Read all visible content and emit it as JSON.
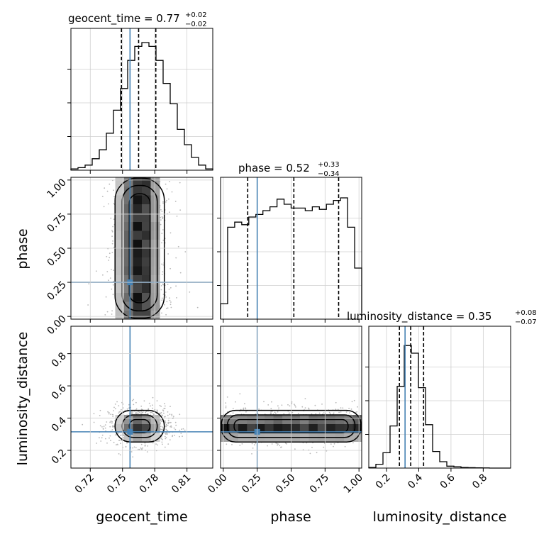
{
  "chart_data": {
    "type": "corner",
    "parameters": [
      "geocent_time",
      "phase",
      "luminosity_distance"
    ],
    "truths": {
      "geocent_time": 0.757,
      "phase": 0.25,
      "luminosity_distance": 0.315
    },
    "titles": {
      "geocent_time": {
        "label": "geocent_time = 0.77",
        "plus": "+0.02",
        "minus": "−0.02"
      },
      "phase": {
        "label": "phase = 0.52",
        "plus": "+0.33",
        "minus": "−0.34"
      },
      "luminosity_distance": {
        "label": "luminosity_distance = 0.35",
        "plus": "+0.08",
        "minus": "−0.07"
      }
    },
    "axis_labels": {
      "x": [
        "geocent_time",
        "phase",
        "luminosity_distance"
      ],
      "y": [
        "phase",
        "luminosity_distance"
      ]
    },
    "ranges": {
      "geocent_time": [
        0.702,
        0.834
      ],
      "phase": [
        -0.02,
        1.02
      ],
      "luminosity_distance": [
        0.09,
        0.97
      ]
    },
    "ticks": {
      "geocent_time": [
        {
          "v": 0.72,
          "label": "0.72"
        },
        {
          "v": 0.75,
          "label": "0.75"
        },
        {
          "v": 0.78,
          "label": "0.78"
        },
        {
          "v": 0.81,
          "label": "0.81"
        }
      ],
      "phase": [
        {
          "v": 0.0,
          "label": "0.00"
        },
        {
          "v": 0.25,
          "label": "0.25"
        },
        {
          "v": 0.5,
          "label": "0.50"
        },
        {
          "v": 0.75,
          "label": "0.75"
        },
        {
          "v": 1.0,
          "label": "1.00"
        }
      ],
      "luminosity_distance": [
        {
          "v": 0.2,
          "label": "0.2"
        },
        {
          "v": 0.4,
          "label": "0.4"
        },
        {
          "v": 0.6,
          "label": "0.6"
        },
        {
          "v": 0.8,
          "label": "0.8"
        }
      ]
    },
    "quantiles": {
      "geocent_time": [
        0.749,
        0.765,
        0.781
      ],
      "phase": [
        0.18,
        0.52,
        0.85
      ],
      "luminosity_distance": [
        0.28,
        0.35,
        0.43
      ]
    },
    "histograms": {
      "geocent_time": {
        "edges_start": 0.702,
        "bin_width": 0.0066,
        "counts": [
          0.01,
          0.02,
          0.04,
          0.09,
          0.16,
          0.29,
          0.47,
          0.64,
          0.86,
          0.97,
          1.0,
          0.97,
          0.86,
          0.68,
          0.52,
          0.32,
          0.2,
          0.1,
          0.04,
          0.01
        ]
      },
      "phase": {
        "edges_start": -0.02,
        "bin_width": 0.052,
        "counts": [
          0.12,
          0.72,
          0.76,
          0.74,
          0.8,
          0.82,
          0.85,
          0.88,
          0.94,
          0.9,
          0.87,
          0.87,
          0.85,
          0.88,
          0.86,
          0.9,
          0.93,
          0.95,
          0.72,
          0.4
        ]
      },
      "luminosity_distance": {
        "edges_start": 0.09,
        "bin_width": 0.044,
        "counts": [
          0.005,
          0.03,
          0.12,
          0.33,
          0.64,
          0.96,
          0.9,
          0.63,
          0.34,
          0.13,
          0.05,
          0.015,
          0.01,
          0.005,
          0.003,
          0.002,
          0.001,
          0.0,
          0.0,
          0.0
        ]
      }
    },
    "grid": true
  }
}
